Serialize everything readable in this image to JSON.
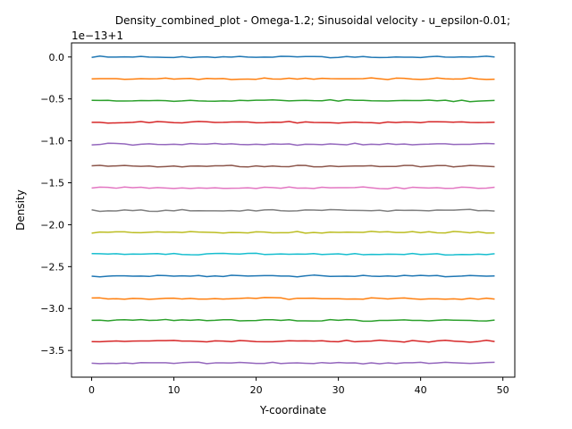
{
  "chart_data": {
    "type": "line",
    "title": "Density_combined_plot - Omega-1.2; Sinusoidal velocity - u_epsilon-0.01;",
    "xlabel": "Y-coordinate",
    "ylabel": "Density",
    "y_offset_label": "1e−13+1",
    "xlim": [
      -2.45,
      51.45
    ],
    "ylim": [
      -3.818,
      0.168
    ],
    "xticks": [
      0,
      10,
      20,
      30,
      40,
      50
    ],
    "xtick_labels": [
      "0",
      "10",
      "20",
      "30",
      "40",
      "50"
    ],
    "yticks": [
      0.0,
      -0.5,
      -1.0,
      -1.5,
      -2.0,
      -2.5,
      -3.0,
      -3.5
    ],
    "ytick_labels": [
      "0.0",
      "−0.5",
      "−1.0",
      "−1.5",
      "−2.0",
      "−2.5",
      "−3.0",
      "−3.5"
    ],
    "grid": false,
    "x": [
      0,
      1,
      2,
      3,
      4,
      5,
      6,
      7,
      8,
      9,
      10,
      11,
      12,
      13,
      14,
      15,
      16,
      17,
      18,
      19,
      20,
      21,
      22,
      23,
      24,
      25,
      26,
      27,
      28,
      29,
      30,
      31,
      32,
      33,
      34,
      35,
      36,
      37,
      38,
      39,
      40,
      41,
      42,
      43,
      44,
      45,
      46,
      47,
      48,
      49
    ],
    "series": [
      {
        "color": "#1f77b4",
        "base": 0.0
      },
      {
        "color": "#ff7f0e",
        "base": -0.26
      },
      {
        "color": "#2ca02c",
        "base": -0.52
      },
      {
        "color": "#d62728",
        "base": -0.78
      },
      {
        "color": "#9467bd",
        "base": -1.04
      },
      {
        "color": "#8c564b",
        "base": -1.3
      },
      {
        "color": "#e377c2",
        "base": -1.56
      },
      {
        "color": "#7f7f7f",
        "base": -1.83
      },
      {
        "color": "#bcbd22",
        "base": -2.09
      },
      {
        "color": "#17becf",
        "base": -2.35
      },
      {
        "color": "#1f77b4",
        "base": -2.61
      },
      {
        "color": "#ff7f0e",
        "base": -2.88
      },
      {
        "color": "#2ca02c",
        "base": -3.14
      },
      {
        "color": "#d62728",
        "base": -3.39
      },
      {
        "color": "#9467bd",
        "base": -3.65
      }
    ]
  }
}
